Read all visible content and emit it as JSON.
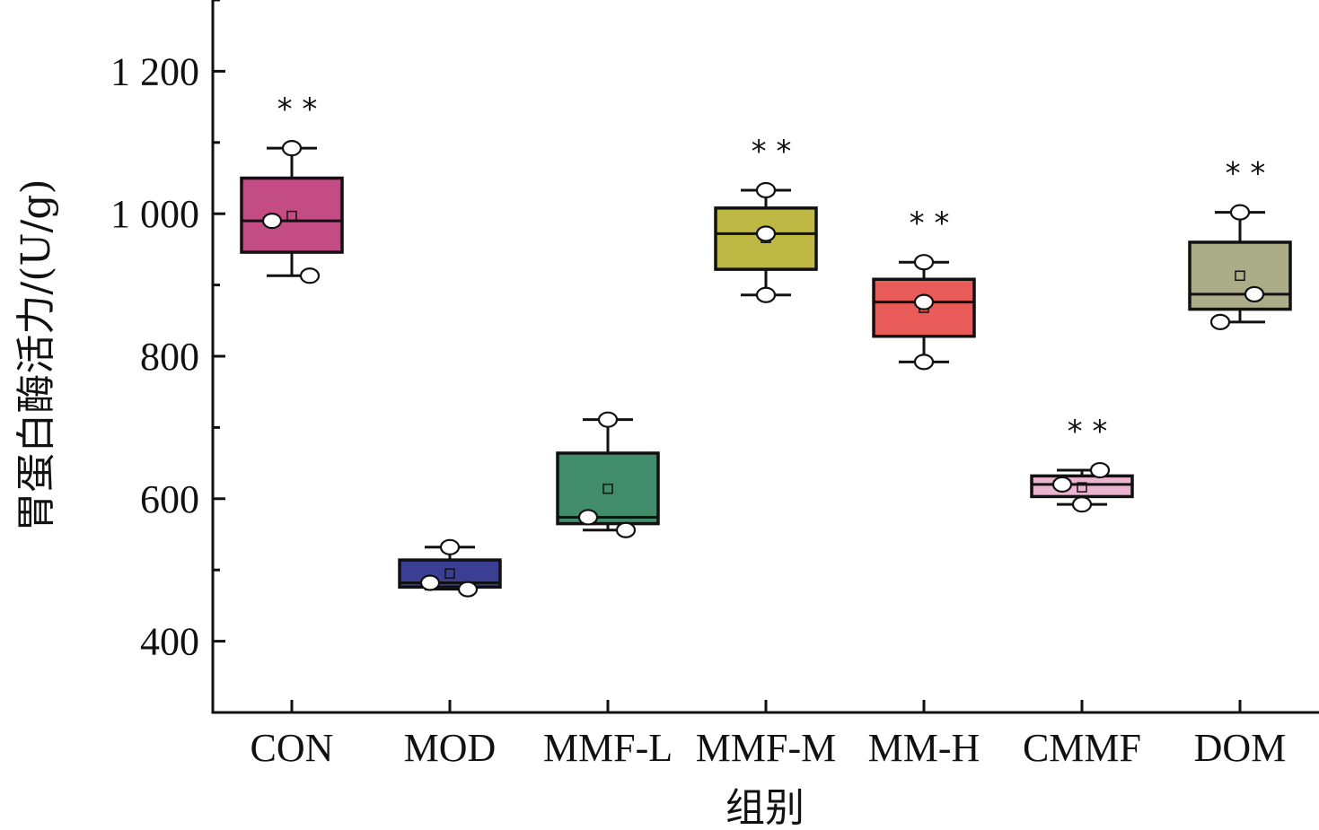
{
  "chart_data": {
    "type": "box",
    "xlabel": "组别",
    "ylabel": "胃蛋白酶活力/(U/g)",
    "ylim": [
      300,
      1300
    ],
    "yticks": [
      {
        "value": 400,
        "label": "400"
      },
      {
        "value": 600,
        "label": "600"
      },
      {
        "value": 800,
        "label": "800"
      },
      {
        "value": 1000,
        "label": "1 000"
      },
      {
        "value": 1200,
        "label": "1 200"
      }
    ],
    "minor_yticks": [
      500,
      700,
      900,
      1100,
      1300
    ],
    "categories": [
      "CON",
      "MOD",
      "MMF-L",
      "MMF-M",
      "MM-H",
      "CMMF",
      "DOM"
    ],
    "boxes": [
      {
        "name": "CON",
        "color": "#C44C85",
        "whisker_low": 913,
        "q1": 946,
        "median": 990,
        "q3": 1050,
        "whisker_high": 1092,
        "mean": 997,
        "points": [
          1092,
          990,
          913
        ],
        "significance": "**"
      },
      {
        "name": "MOD",
        "color": "#3A3F93",
        "whisker_low": 473,
        "q1": 476,
        "median": 482,
        "q3": 514,
        "whisker_high": 532,
        "mean": 495,
        "points": [
          532,
          482,
          473
        ],
        "significance": ""
      },
      {
        "name": "MMF-L",
        "color": "#418C6B",
        "whisker_low": 556,
        "q1": 565,
        "median": 574,
        "q3": 664,
        "whisker_high": 711,
        "mean": 614,
        "points": [
          711,
          574,
          556
        ],
        "significance": ""
      },
      {
        "name": "MMF-M",
        "color": "#BEB944",
        "whisker_low": 886,
        "q1": 922,
        "median": 972,
        "q3": 1008,
        "whisker_high": 1033,
        "mean": 966,
        "points": [
          1033,
          972,
          886
        ],
        "significance": "**"
      },
      {
        "name": "MM-H",
        "color": "#E85B59",
        "whisker_low": 792,
        "q1": 828,
        "median": 876,
        "q3": 908,
        "whisker_high": 932,
        "mean": 868,
        "points": [
          932,
          876,
          792
        ],
        "significance": "**"
      },
      {
        "name": "CMMF",
        "color": "#ECB3D0",
        "whisker_low": 592,
        "q1": 603,
        "median": 620,
        "q3": 632,
        "whisker_high": 640,
        "mean": 616,
        "points": [
          640,
          620,
          592
        ],
        "significance": "**"
      },
      {
        "name": "DOM",
        "color": "#ABAD89",
        "whisker_low": 848,
        "q1": 866,
        "median": 887,
        "q3": 960,
        "whisker_high": 1002,
        "mean": 913,
        "points": [
          1002,
          887,
          848
        ],
        "significance": "**"
      }
    ],
    "grid": false,
    "legend": "none"
  }
}
